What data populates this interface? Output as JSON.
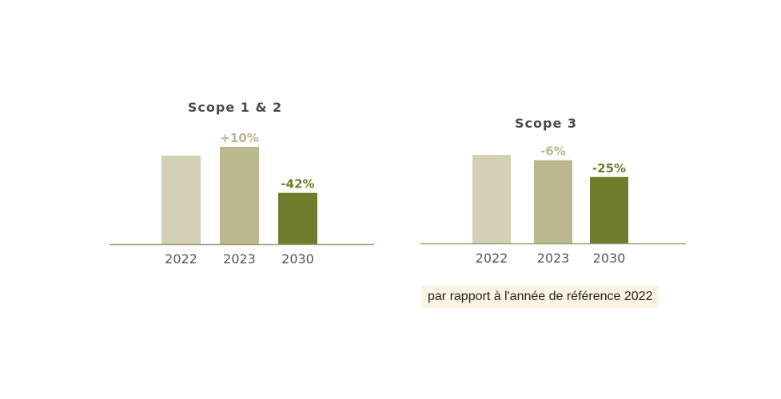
{
  "chart_data": [
    {
      "type": "bar",
      "title": "Scope 1 & 2",
      "categories": [
        "2022",
        "2023",
        "2030"
      ],
      "values": [
        100,
        110,
        58
      ],
      "data_labels": [
        "",
        "+10%",
        "-42%"
      ],
      "ylim": [
        0,
        110
      ],
      "colors": [
        "#d3d0b6",
        "#bbb78f",
        "#6f7c2c"
      ],
      "label_colors": [
        "",
        "#bbb78f",
        "#6f7c2c"
      ],
      "axis_color": "#9aa27a"
    },
    {
      "type": "bar",
      "title": "Scope 3",
      "categories": [
        "2022",
        "2023",
        "2030"
      ],
      "values": [
        100,
        94,
        75
      ],
      "data_labels": [
        "",
        "-6%",
        "-25%"
      ],
      "ylim": [
        0,
        110
      ],
      "colors": [
        "#d3d0b6",
        "#bbb78f",
        "#6f7c2c"
      ],
      "label_colors": [
        "",
        "#bbb78f",
        "#6f7c2c"
      ],
      "axis_color": "#9aa27a"
    }
  ],
  "footnote": "par rapport à l'année de référence 2022"
}
